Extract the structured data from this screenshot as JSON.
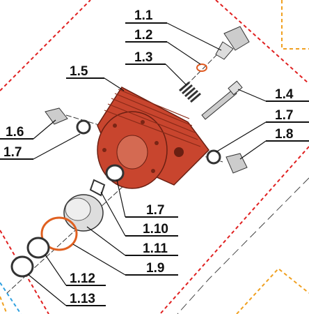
{
  "callouts": [
    "1.1",
    "1.2",
    "1.3",
    "1.5",
    "1.4",
    "1.6",
    "1.7",
    "1.7",
    "1.8",
    "1.7",
    "1.10",
    "1.11",
    "1.9",
    "1.12",
    "1.13"
  ]
}
